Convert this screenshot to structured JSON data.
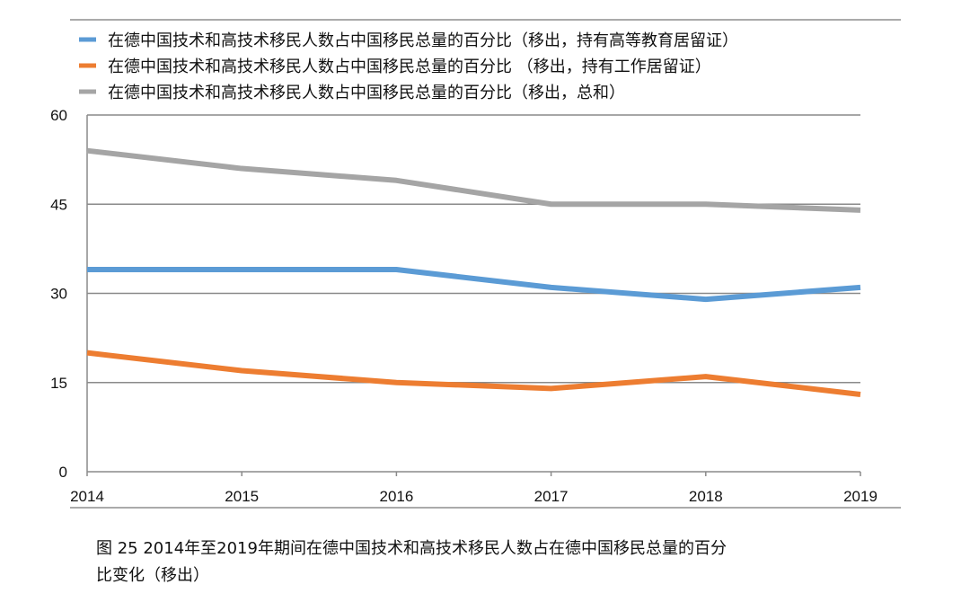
{
  "chart_data": {
    "type": "line",
    "x": [
      "2014",
      "2015",
      "2016",
      "2017",
      "2018",
      "2019"
    ],
    "ylim": [
      0,
      60
    ],
    "yticks": [
      "0",
      "15",
      "30",
      "45",
      "60"
    ],
    "grid": true,
    "legend_placement": "top",
    "series": [
      {
        "name": "在德中国技术和高技术移民人数占中国移民总量的百分比（移出，持有高等教育居留证）",
        "color": "#5b9bd5",
        "values": [
          34,
          34,
          34,
          31,
          29,
          31
        ]
      },
      {
        "name": "在德中国技术和高技术移民人数占中国移民总量的百分比 （移出，持有工作居留证）",
        "color": "#ed7d31",
        "values": [
          20,
          17,
          15,
          14,
          16,
          13
        ]
      },
      {
        "name": "在德中国技术和高技术移民人数占中国移民总量的百分比（移出，总和）",
        "color": "#a5a5a5",
        "values": [
          54,
          51,
          49,
          45,
          45,
          44
        ]
      }
    ]
  },
  "caption": {
    "line1": "图  25  2014年至2019年期间在德中国技术和高技术移民人数占在德中国移民总量的百分",
    "line2": "比变化（移出）"
  }
}
